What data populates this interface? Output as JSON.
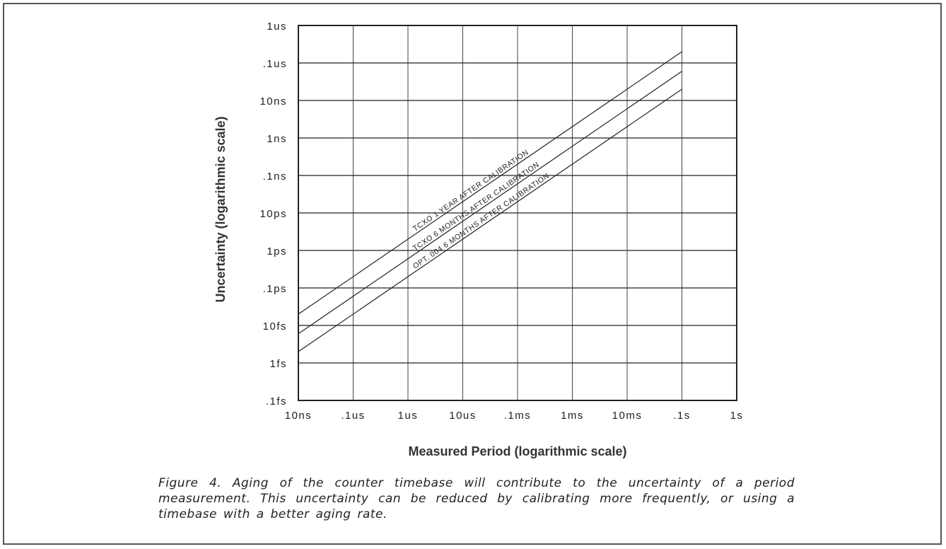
{
  "chart_data": {
    "type": "line",
    "title": "",
    "xlabel": "Measured Period (logarithmic scale)",
    "ylabel": "Uncertainty (logarithmic scale)",
    "x_scale": "log",
    "y_scale": "log",
    "xlim": [
      "10ns",
      "1s"
    ],
    "ylim": [
      ".1fs",
      "1us"
    ],
    "grid": true,
    "x_ticks": [
      "10ns",
      ".1us",
      "1us",
      "10us",
      ".1ms",
      "1ms",
      "10ms",
      ".1s",
      "1s"
    ],
    "y_ticks": [
      ".1fs",
      "1fs",
      "10fs",
      ".1ps",
      "1ps",
      "10ps",
      ".1ns",
      "1ns",
      "10ns",
      ".1us",
      "1us"
    ],
    "series": [
      {
        "name": "TCXO 1 YEAR AFTER CALIBRATION",
        "x": [
          "10ns",
          ".1s"
        ],
        "y": [
          "20fs",
          "0.2us"
        ]
      },
      {
        "name": "TCXO 6 MONTHS AFTER CALIBRATION",
        "x": [
          "10ns",
          ".1s"
        ],
        "y": [
          "6fs",
          "60ns"
        ]
      },
      {
        "name": "OPT. 004 6 MONTHS AFTER CALIBRATION",
        "x": [
          "10ns",
          ".1s"
        ],
        "y": [
          "2fs",
          "20ns"
        ]
      }
    ]
  },
  "caption": "Figure 4. Aging of the counter timebase will contribute to the uncertainty of a period measurement. This uncertainty can be reduced by calibrating more frequently, or using a timebase with a better aging rate."
}
